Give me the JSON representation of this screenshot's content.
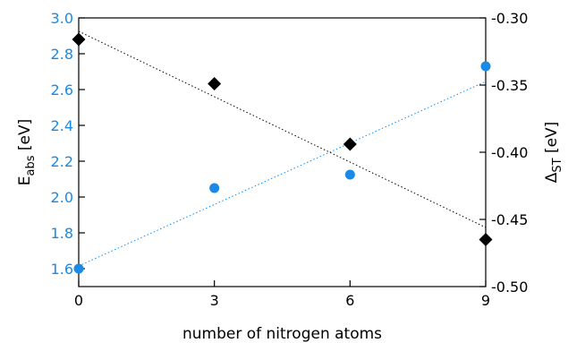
{
  "chart_data": {
    "type": "scatter",
    "xlabel": "number of nitrogen atoms",
    "ylabel_left": {
      "main": "E",
      "sub": "abs",
      "unit": " [eV]"
    },
    "ylabel_right": {
      "main": "Δ",
      "sub": "ST",
      "unit": " [eV]"
    },
    "xlim": [
      0,
      9
    ],
    "ylim_left": [
      1.5,
      3.0
    ],
    "ylim_right": [
      -0.5,
      -0.3
    ],
    "x_ticks": [
      0,
      3,
      6,
      9
    ],
    "y_left_ticks": [
      1.6,
      1.8,
      2.0,
      2.2,
      2.4,
      2.6,
      2.8,
      3.0
    ],
    "y_right_ticks": [
      -0.5,
      -0.45,
      -0.4,
      -0.35,
      -0.3
    ],
    "series": [
      {
        "axis": "left",
        "marker": "circle",
        "color": "#1a8ae6",
        "x": [
          0,
          3,
          6,
          9
        ],
        "y": [
          1.6,
          2.05,
          2.125,
          2.73
        ],
        "trend": {
          "style": "dotted",
          "y_start": 1.615,
          "y_end": 2.645
        }
      },
      {
        "axis": "right",
        "marker": "diamond",
        "color": "#000000",
        "x": [
          0,
          3,
          6,
          9
        ],
        "y": [
          -0.316,
          -0.349,
          -0.394,
          -0.465
        ],
        "trend": {
          "style": "dotted",
          "y_start": -0.31,
          "y_end": -0.456
        }
      }
    ]
  }
}
